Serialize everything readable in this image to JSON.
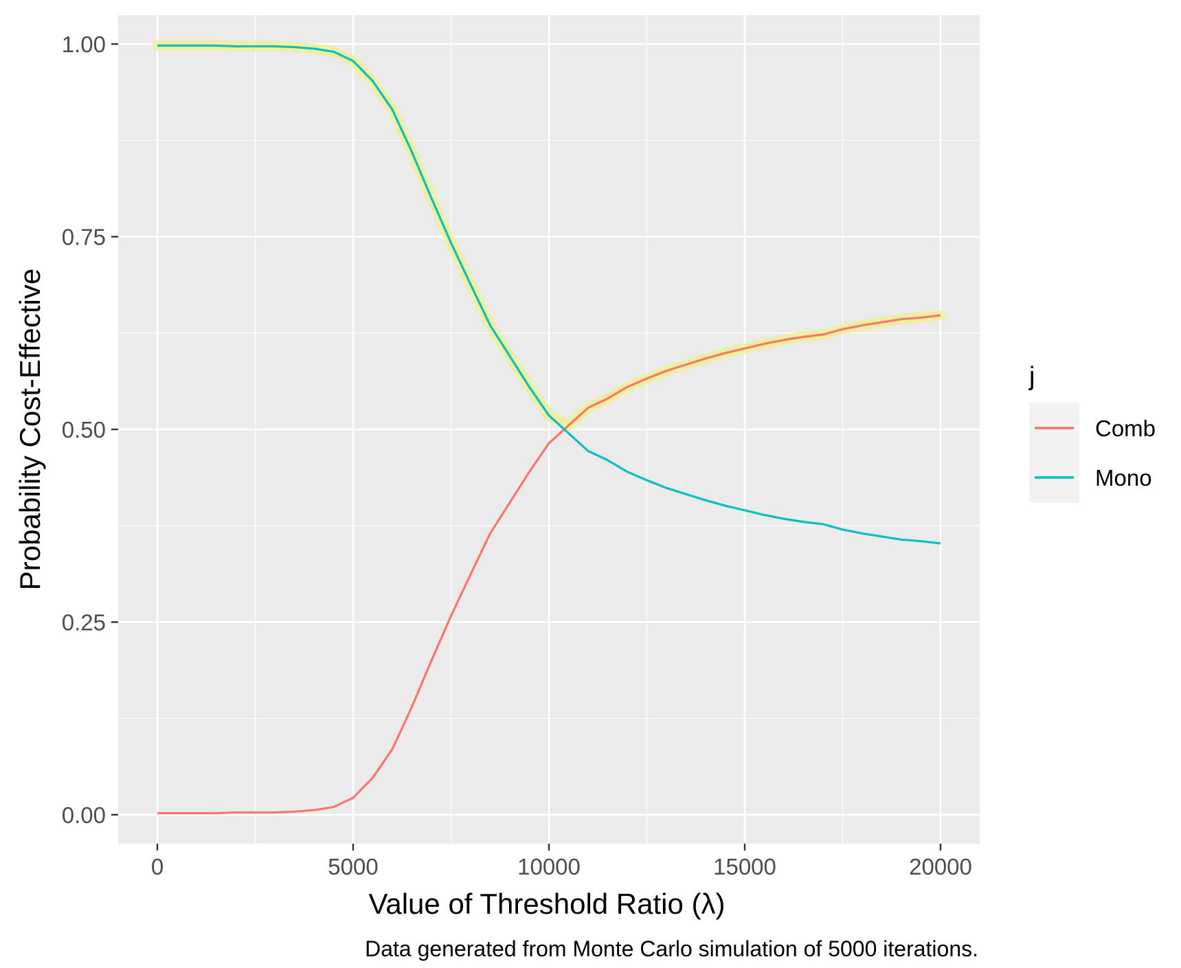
{
  "chart_data": {
    "type": "line",
    "xlabel": "Value of Threshold Ratio (λ)",
    "ylabel": "Probability Cost-Effective",
    "caption": "Data generated from Monte Carlo simulation of 5000 iterations.",
    "xlim": [
      -1000,
      21000
    ],
    "ylim": [
      -0.0375,
      1.0375
    ],
    "x_ticks": [
      0,
      5000,
      10000,
      15000,
      20000
    ],
    "x_tick_labels": [
      "0",
      "5000",
      "10000",
      "15000",
      "20000"
    ],
    "y_ticks": [
      0,
      0.25,
      0.5,
      0.75,
      1.0
    ],
    "y_tick_labels": [
      "0.00",
      "0.25",
      "0.50",
      "0.75",
      "1.00"
    ],
    "grid": true,
    "legend": {
      "title": "j",
      "placement": "right"
    },
    "highlight": {
      "color": "#f0f08a",
      "description": "maximum expected net benefit frontier"
    },
    "series": [
      {
        "name": "Comb",
        "color": "#F8766D",
        "x": [
          0,
          500,
          1000,
          1500,
          2000,
          2500,
          3000,
          3500,
          4000,
          4500,
          5000,
          5500,
          6000,
          6500,
          7000,
          7500,
          8000,
          8500,
          9000,
          9500,
          10000,
          10500,
          11000,
          11500,
          12000,
          12500,
          13000,
          13500,
          14000,
          14500,
          15000,
          15500,
          16000,
          16500,
          17000,
          17500,
          18000,
          18500,
          19000,
          19500,
          20000
        ],
        "values": [
          0.002,
          0.002,
          0.002,
          0.002,
          0.003,
          0.003,
          0.003,
          0.004,
          0.006,
          0.01,
          0.022,
          0.048,
          0.085,
          0.14,
          0.2,
          0.258,
          0.312,
          0.365,
          0.405,
          0.445,
          0.482,
          0.505,
          0.528,
          0.54,
          0.555,
          0.566,
          0.576,
          0.584,
          0.592,
          0.599,
          0.605,
          0.611,
          0.616,
          0.62,
          0.623,
          0.63,
          0.635,
          0.639,
          0.643,
          0.645,
          0.648
        ]
      },
      {
        "name": "Mono",
        "color": "#00BFC4",
        "x": [
          0,
          500,
          1000,
          1500,
          2000,
          2500,
          3000,
          3500,
          4000,
          4500,
          5000,
          5500,
          6000,
          6500,
          7000,
          7500,
          8000,
          8500,
          9000,
          9500,
          10000,
          10500,
          11000,
          11500,
          12000,
          12500,
          13000,
          13500,
          14000,
          14500,
          15000,
          15500,
          16000,
          16500,
          17000,
          17500,
          18000,
          18500,
          19000,
          19500,
          20000
        ],
        "values": [
          0.998,
          0.998,
          0.998,
          0.998,
          0.997,
          0.997,
          0.997,
          0.996,
          0.994,
          0.99,
          0.978,
          0.952,
          0.915,
          0.86,
          0.8,
          0.742,
          0.688,
          0.635,
          0.595,
          0.555,
          0.518,
          0.495,
          0.472,
          0.46,
          0.445,
          0.434,
          0.424,
          0.416,
          0.408,
          0.401,
          0.395,
          0.389,
          0.384,
          0.38,
          0.377,
          0.37,
          0.365,
          0.361,
          0.357,
          0.355,
          0.352
        ]
      }
    ]
  }
}
